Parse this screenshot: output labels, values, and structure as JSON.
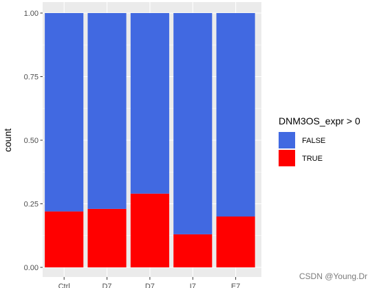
{
  "chart_data": {
    "type": "bar",
    "stacked": "fill",
    "categories": [
      "Ctrl",
      "D7",
      "D7",
      "I7",
      "E7"
    ],
    "series": [
      {
        "name": "FALSE",
        "values": [
          0.78,
          0.77,
          0.71,
          0.87,
          0.8
        ],
        "color": "#4169E1"
      },
      {
        "name": "TRUE",
        "values": [
          0.22,
          0.23,
          0.29,
          0.13,
          0.2
        ],
        "color": "#FF0000"
      }
    ],
    "ylabel": "count",
    "xlabel": "",
    "ylim": [
      0,
      1
    ],
    "yticks": [
      "0.00",
      "0.25",
      "0.50",
      "0.75",
      "1.00"
    ],
    "legend": {
      "title": "DNM3OS_expr > 0",
      "placement": "right"
    },
    "grid": true,
    "panel_background": "#EBEBEB"
  },
  "watermark": "CSDN @Young.Dr"
}
